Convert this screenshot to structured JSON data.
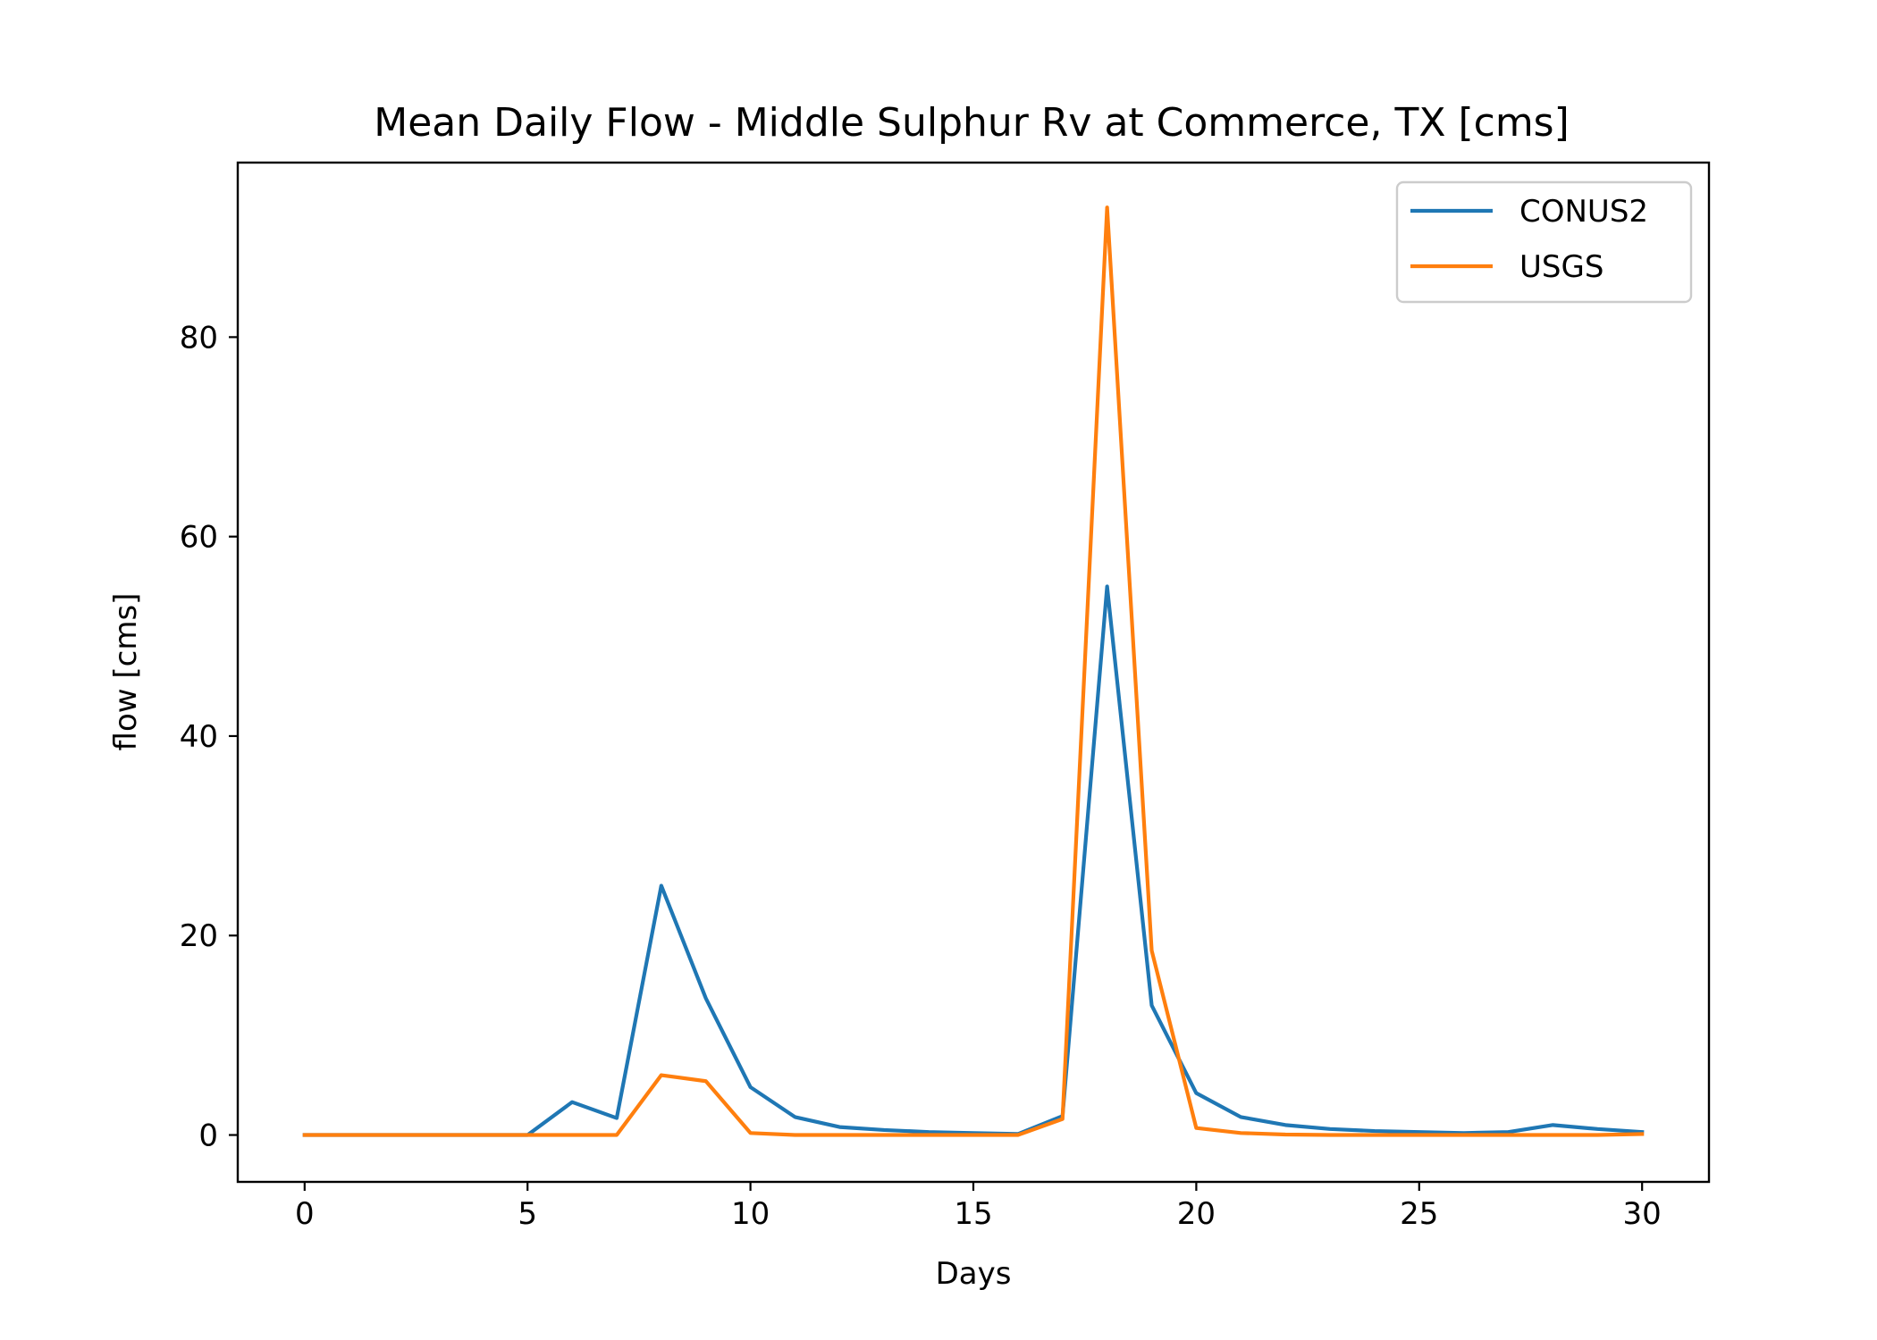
{
  "chart_data": {
    "type": "line",
    "title": "Mean Daily Flow - Middle Sulphur Rv at Commerce, TX [cms]",
    "xlabel": "Days",
    "ylabel": "flow [cms]",
    "xlim": [
      -1.5,
      31.5
    ],
    "ylim": [
      -4.7,
      97.5
    ],
    "xticks": [
      0,
      5,
      10,
      15,
      20,
      25,
      30
    ],
    "yticks": [
      0,
      20,
      40,
      60,
      80
    ],
    "grid": false,
    "legend_position": "top-right",
    "x": [
      0,
      1,
      2,
      3,
      4,
      5,
      6,
      7,
      8,
      9,
      10,
      11,
      12,
      13,
      14,
      15,
      16,
      17,
      18,
      19,
      20,
      21,
      22,
      23,
      24,
      25,
      26,
      27,
      28,
      29,
      30
    ],
    "series": [
      {
        "name": "CONUS2",
        "color": "#1f77b4",
        "values": [
          0.0,
          0.0,
          0.0,
          0.0,
          0.0,
          0.0,
          3.3,
          1.7,
          25.0,
          13.7,
          4.8,
          1.8,
          0.8,
          0.5,
          0.3,
          0.2,
          0.1,
          1.9,
          55.0,
          13.0,
          4.2,
          1.8,
          1.0,
          0.6,
          0.4,
          0.3,
          0.2,
          0.3,
          1.0,
          0.6,
          0.3
        ]
      },
      {
        "name": "USGS",
        "color": "#ff7f0e",
        "values": [
          0.0,
          0.0,
          0.0,
          0.0,
          0.0,
          0.0,
          0.0,
          0.0,
          6.0,
          5.4,
          0.2,
          0.0,
          0.0,
          0.0,
          0.0,
          0.0,
          0.0,
          1.6,
          93.0,
          18.5,
          0.7,
          0.2,
          0.05,
          0.0,
          0.0,
          0.0,
          0.0,
          0.0,
          0.0,
          0.0,
          0.1
        ]
      }
    ]
  }
}
